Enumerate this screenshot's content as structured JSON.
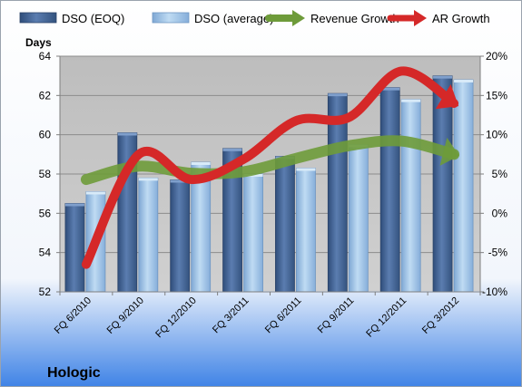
{
  "chart_data": {
    "type": "bar",
    "title": "Hologic",
    "ylabel": "Days",
    "categories": [
      "FQ 6/2010",
      "FQ 9/2010",
      "FQ 12/2010",
      "FQ 3/2011",
      "FQ 6/2011",
      "FQ 9/2011",
      "FQ 12/2011",
      "FQ 3/2012"
    ],
    "y_ticks": [
      "52",
      "54",
      "56",
      "58",
      "60",
      "62",
      "64"
    ],
    "y2_ticks": [
      "-10%",
      "-5%",
      "0%",
      "5%",
      "10%",
      "15%",
      "20%"
    ],
    "ylim": [
      52,
      64
    ],
    "y2lim": [
      -10,
      20
    ],
    "series": [
      {
        "name": "DSO (EOQ)",
        "type": "bar",
        "axis": "left",
        "values": [
          56.5,
          60.1,
          57.7,
          59.3,
          58.9,
          62.1,
          62.4,
          63.0
        ],
        "color": "#4A6B9C"
      },
      {
        "name": "DSO (average)",
        "type": "bar",
        "axis": "left",
        "values": [
          57.1,
          57.8,
          58.6,
          58.0,
          58.3,
          59.5,
          61.8,
          62.8
        ],
        "color": "#9DC3E6"
      },
      {
        "name": "Revenue Growth",
        "type": "line",
        "axis": "right",
        "values": [
          4.3,
          6.0,
          5.1,
          5.3,
          7.0,
          8.6,
          9.2,
          7.5
        ],
        "color": "#6E9B3A"
      },
      {
        "name": "AR Growth",
        "type": "line",
        "axis": "right",
        "values": [
          -6.5,
          7.5,
          4.3,
          6.9,
          11.8,
          12.2,
          18.1,
          14.0
        ],
        "color": "#D52828"
      }
    ],
    "legend_position": "top",
    "grid": true
  }
}
